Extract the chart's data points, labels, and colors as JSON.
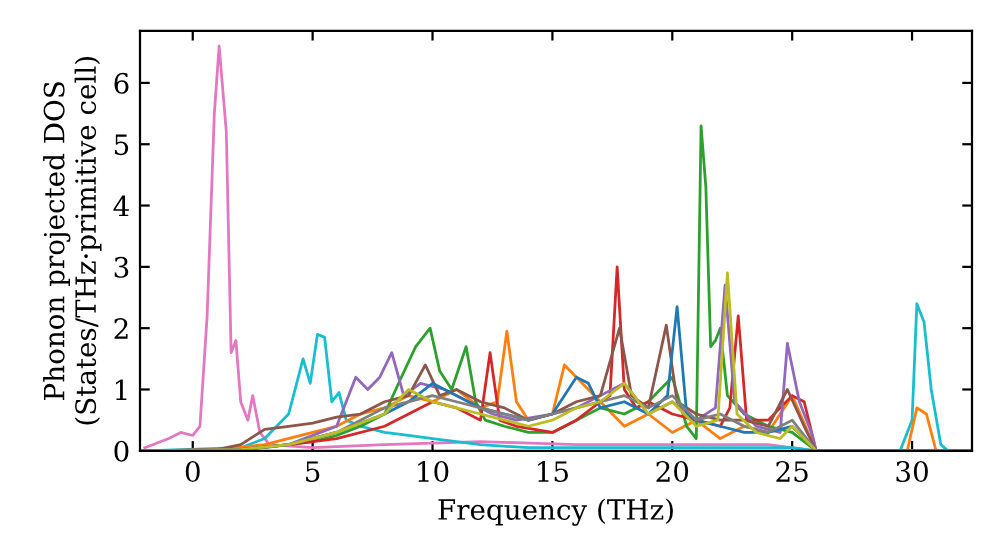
{
  "chart_data": {
    "type": "line",
    "xlabel": "Frequency (THz)",
    "ylabel": "Phonon projected DOS\n(States/THz·primitive cell)",
    "xlim": [
      -2.2,
      32.5
    ],
    "ylim": [
      0,
      6.85
    ],
    "xticks": [
      0,
      5,
      10,
      15,
      20,
      25,
      30
    ],
    "yticks": [
      0,
      1,
      2,
      3,
      4,
      5,
      6
    ],
    "grid": false,
    "line_style": "solid",
    "marker": "none",
    "series": [
      {
        "color": "#e377c2",
        "x": [
          -2,
          -1,
          -0.5,
          0,
          0.3,
          0.6,
          0.9,
          1.1,
          1.4,
          1.6,
          1.8,
          2.0,
          2.3,
          2.5,
          2.8,
          3.2,
          5,
          8,
          12,
          16,
          20,
          24,
          26,
          32.5
        ],
        "values": [
          0.05,
          0.2,
          0.3,
          0.25,
          0.4,
          2.2,
          5.5,
          6.6,
          5.2,
          1.6,
          1.8,
          0.8,
          0.5,
          0.9,
          0.3,
          0.1,
          0.05,
          0.1,
          0.15,
          0.1,
          0.1,
          0.1,
          0,
          0
        ]
      },
      {
        "color": "#17becf",
        "x": [
          -2,
          2,
          3,
          4,
          4.6,
          4.9,
          5.2,
          5.5,
          5.8,
          6.1,
          6.4,
          7,
          8,
          9,
          10,
          11,
          12,
          14,
          16,
          20,
          25,
          26,
          29.5,
          30.0,
          30.2,
          30.5,
          30.8,
          31.2,
          31.5,
          32.5
        ],
        "values": [
          0,
          0.05,
          0.2,
          0.6,
          1.5,
          1.1,
          1.9,
          1.85,
          0.8,
          0.95,
          0.5,
          0.4,
          0.3,
          0.25,
          0.2,
          0.15,
          0.1,
          0.05,
          0.05,
          0.05,
          0.05,
          0,
          0,
          0.5,
          2.4,
          2.1,
          1.0,
          0.1,
          0,
          0
        ]
      },
      {
        "color": "#ff7f0e",
        "x": [
          -2,
          1,
          3,
          5,
          6,
          7,
          8,
          9,
          10,
          11,
          12,
          12.7,
          13.1,
          13.5,
          14,
          15,
          15.5,
          16,
          17,
          18,
          19,
          20,
          21,
          22,
          23,
          24,
          25,
          26,
          29.8,
          30.2,
          30.6,
          31,
          32.5
        ],
        "values": [
          0,
          0.02,
          0.1,
          0.3,
          0.4,
          0.6,
          0.7,
          0.9,
          0.8,
          1.0,
          0.7,
          0.8,
          1.95,
          0.8,
          0.5,
          0.6,
          1.4,
          1.2,
          0.8,
          0.4,
          0.6,
          0.3,
          0.5,
          0.2,
          0.4,
          0.3,
          0.9,
          0,
          0,
          0.7,
          0.6,
          0,
          0
        ]
      },
      {
        "color": "#2ca02c",
        "x": [
          -2,
          1,
          3,
          5,
          6,
          7,
          8,
          8.7,
          9.3,
          9.9,
          10.3,
          10.8,
          11.4,
          11.8,
          12.2,
          13,
          14,
          15,
          16,
          17,
          18,
          19,
          20,
          20.6,
          21.0,
          21.2,
          21.4,
          21.6,
          21.8,
          22.0,
          22.3,
          23,
          24,
          25,
          26,
          32.5
        ],
        "values": [
          0,
          0,
          0.05,
          0.15,
          0.25,
          0.4,
          0.6,
          1.2,
          1.7,
          2.0,
          1.3,
          1.0,
          1.7,
          0.8,
          0.5,
          0.4,
          0.3,
          0.3,
          0.5,
          0.7,
          0.6,
          0.8,
          1.2,
          0.4,
          0.2,
          5.3,
          4.3,
          1.7,
          1.8,
          2.0,
          0.9,
          0.6,
          0.4,
          0.3,
          0,
          0
        ]
      },
      {
        "color": "#d62728",
        "x": [
          -2,
          2,
          4,
          6,
          8,
          9,
          10,
          11,
          12,
          12.4,
          12.8,
          13.5,
          15,
          16,
          17,
          17.4,
          17.7,
          18.0,
          18.5,
          19,
          20,
          21,
          22,
          22.4,
          22.75,
          23.1,
          24,
          25,
          25.5,
          26,
          32.5
        ],
        "values": [
          0,
          0.02,
          0.1,
          0.2,
          0.4,
          0.6,
          0.8,
          0.7,
          0.5,
          1.6,
          0.5,
          0.4,
          0.3,
          0.5,
          0.8,
          0.9,
          3.0,
          1.0,
          0.7,
          0.8,
          0.6,
          0.5,
          0.4,
          0.7,
          2.2,
          0.5,
          0.5,
          0.9,
          0.8,
          0,
          0
        ]
      },
      {
        "color": "#9467bd",
        "x": [
          -2,
          2,
          4,
          6,
          6.8,
          7.3,
          7.8,
          8.3,
          8.8,
          9.5,
          10.5,
          11.5,
          12.5,
          13.5,
          15,
          16,
          17,
          18,
          19,
          20,
          21,
          21.8,
          22.2,
          22.6,
          23.5,
          24.5,
          24.8,
          25.3,
          25.8,
          26,
          32.5
        ],
        "values": [
          0,
          0.02,
          0.1,
          0.4,
          1.2,
          1.0,
          1.2,
          1.6,
          0.9,
          1.1,
          1.0,
          0.8,
          0.6,
          0.5,
          0.6,
          0.7,
          0.9,
          1.1,
          0.6,
          0.8,
          0.5,
          0.7,
          2.7,
          0.8,
          0.4,
          0.3,
          1.75,
          0.8,
          0.3,
          0,
          0
        ]
      },
      {
        "color": "#8c564b",
        "x": [
          -2,
          1,
          2,
          3,
          4,
          5,
          6,
          7,
          8,
          9,
          9.7,
          10.3,
          11,
          12,
          13,
          14,
          15,
          16,
          17,
          17.8,
          18.3,
          19,
          19.75,
          20.2,
          21,
          22,
          23,
          24,
          24.8,
          25.5,
          26,
          32.5
        ],
        "values": [
          0,
          0.02,
          0.1,
          0.35,
          0.4,
          0.45,
          0.55,
          0.6,
          0.8,
          0.9,
          1.4,
          0.9,
          1.0,
          0.8,
          0.7,
          0.5,
          0.6,
          0.8,
          0.9,
          2.0,
          0.9,
          0.7,
          2.05,
          0.8,
          0.6,
          0.5,
          0.5,
          0.4,
          1.0,
          0.4,
          0,
          0
        ]
      },
      {
        "color": "#1f77b4",
        "x": [
          -2,
          2,
          4,
          6,
          8,
          9,
          10,
          11,
          12,
          13,
          14,
          15,
          16,
          16.5,
          17,
          18,
          19,
          19.8,
          20.2,
          20.6,
          21,
          22,
          23,
          24,
          25,
          26,
          32.5
        ],
        "values": [
          0,
          0.02,
          0.1,
          0.3,
          0.6,
          0.8,
          1.1,
          0.9,
          0.7,
          0.6,
          0.5,
          0.6,
          1.2,
          1.1,
          0.7,
          0.8,
          0.6,
          0.9,
          2.35,
          0.6,
          0.5,
          0.4,
          0.3,
          0.3,
          0.4,
          0,
          0
        ]
      },
      {
        "color": "#7f7f7f",
        "x": [
          -2,
          2,
          4,
          6,
          8,
          10,
          11,
          12,
          13,
          14,
          15,
          16,
          17,
          18,
          19,
          20,
          21,
          22,
          23,
          24,
          25,
          26,
          32.5
        ],
        "values": [
          0,
          0.02,
          0.1,
          0.3,
          0.7,
          0.9,
          0.8,
          0.7,
          0.6,
          0.5,
          0.6,
          0.7,
          0.8,
          0.9,
          0.7,
          0.9,
          0.5,
          0.6,
          0.4,
          0.3,
          0.5,
          0,
          0
        ]
      },
      {
        "color": "#bcbd22",
        "x": [
          -2,
          2,
          4,
          6,
          8,
          9,
          10,
          11,
          12,
          13,
          14,
          15,
          16,
          17,
          18,
          19,
          20,
          21,
          21.9,
          22.3,
          22.7,
          23.5,
          24.5,
          25,
          26,
          32.5
        ],
        "values": [
          0,
          0.02,
          0.1,
          0.3,
          0.6,
          1.0,
          0.8,
          0.7,
          0.6,
          0.5,
          0.4,
          0.5,
          0.7,
          0.8,
          1.1,
          0.6,
          0.8,
          0.4,
          0.5,
          2.9,
          0.6,
          0.3,
          0.2,
          0.4,
          0,
          0
        ]
      }
    ]
  }
}
